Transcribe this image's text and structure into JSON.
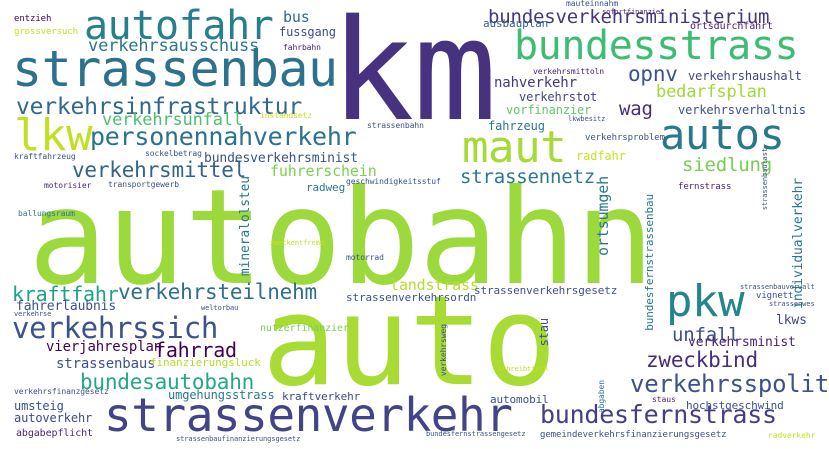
{
  "words": {
    "autobahn": {
      "text": "autobahn",
      "color": "#9bd93c"
    },
    "auto": {
      "text": "auto",
      "color": "#a8db34"
    },
    "km": {
      "text": "km",
      "color": "#46327e"
    },
    "strassenbau": {
      "text": "strassenbau",
      "color": "#2c728e"
    },
    "autofahr": {
      "text": "autofahr",
      "color": "#277f8e"
    },
    "bundesstrass": {
      "text": "bundesstrass",
      "color": "#3fbc73"
    },
    "autos": {
      "text": "autos",
      "color": "#2a788e"
    },
    "maut": {
      "text": "maut",
      "color": "#a5db36"
    },
    "lkw": {
      "text": "lkw",
      "color": "#c2df23"
    },
    "verkehrsinfrastruktur": {
      "text": "verkehrsinfrastruktur",
      "color": "#31688e"
    },
    "personennahverkehr": {
      "text": "personennahverkehr",
      "color": "#2c728e"
    },
    "strassenverkehr": {
      "text": "strassenverkehr",
      "color": "#414487"
    },
    "pkw": {
      "text": "pkw",
      "color": "#25858e"
    },
    "verkehrssich": {
      "text": "verkehrssich",
      "color": "#3b528b"
    },
    "bundesfernstrass": {
      "text": "bundesfernstrass",
      "color": "#433e85"
    },
    "verkehrsspolit": {
      "text": "verkehrsspolit",
      "color": "#3b528b"
    },
    "bundesautobahn": {
      "text": "bundesautobahn",
      "color": "#22a884"
    },
    "zweckbind": {
      "text": "zweckbind",
      "color": "#472d7b"
    },
    "verkehrsteilnehm": {
      "text": "verkehrsteilnehm",
      "color": "#2d708e"
    },
    "kraftfahr": {
      "text": "kraftfahr",
      "color": "#1fa187"
    },
    "verkehrsmittel": {
      "text": "verkehrsmittel",
      "color": "#33638d"
    },
    "bundesverkehrsministerium": {
      "text": "bundesverkehrsministerium",
      "color": "#453882"
    },
    "verkehrsausschuss": {
      "text": "verkehrsausschuss",
      "color": "#2a788e"
    },
    "verkehrsunfall": {
      "text": "verkehrsunfall",
      "color": "#4ac16d"
    },
    "strassennetz": {
      "text": "strassennetz",
      "color": "#2a788e"
    },
    "siedlung": {
      "text": "siedlung",
      "color": "#75d054"
    },
    "opnv": {
      "text": "opnv",
      "color": "#3b528b"
    },
    "wag": {
      "text": "wag",
      "color": "#472d7b"
    },
    "bedarfsplan": {
      "text": "bedarfsplan",
      "color": "#9fda3a"
    },
    "fahrrad": {
      "text": "fahrrad",
      "color": "#440154"
    },
    "unfall": {
      "text": "unfall",
      "color": "#3b528b"
    },
    "bundesverkehrsminist": {
      "text": "bundesverkehrsminist",
      "color": "#3b528b"
    },
    "fuhrerschein": {
      "text": "fuhrerschein",
      "color": "#7ad151"
    },
    "bus": {
      "text": "bus",
      "color": "#31688e"
    },
    "fussgang": {
      "text": "fussgang",
      "color": "#3e4a89"
    },
    "ausbauplan": {
      "text": "ausbauplan",
      "color": "#33638d"
    },
    "nahverkehr": {
      "text": "nahverkehr",
      "color": "#453882"
    },
    "verkehrstot": {
      "text": "verkehrstot",
      "color": "#414487"
    },
    "vorfinanzier": {
      "text": "vorfinanzier",
      "color": "#5ec962"
    },
    "verkehrsverhaltnis": {
      "text": "verkehrsverhaltnis",
      "color": "#3b528b"
    },
    "verkehrshaushalt": {
      "text": "verkehrshaushalt",
      "color": "#414487"
    },
    "fahrzeug": {
      "text": "fahrzeug",
      "color": "#2a788e"
    },
    "radfahr": {
      "text": "radfahr",
      "color": "#c8e020"
    },
    "radweg": {
      "text": "radweg",
      "color": "#2a788e"
    },
    "landstrass": {
      "text": "landstrass",
      "color": "#b5de2b"
    },
    "stau": {
      "text": "stau",
      "color": "#3b528b"
    },
    "lkws": {
      "text": "lkws",
      "color": "#3e4a89"
    },
    "verkehrsminist": {
      "text": "verkehrsminist",
      "color": "#481f70"
    },
    "fahrerlaubnis": {
      "text": "fahrerlaubnis",
      "color": "#3b528b"
    },
    "vierjahresplan": {
      "text": "vierjahresplan",
      "color": "#440154"
    },
    "strassenbaus": {
      "text": "strassenbaus",
      "color": "#3b528b"
    },
    "umgehungsstrass": {
      "text": "umgehungsstrass",
      "color": "#2a788e"
    },
    "kraftverkehr": {
      "text": "kraftverkehr",
      "color": "#3e4a89"
    },
    "umsteig": {
      "text": "umsteig",
      "color": "#3b528b"
    },
    "autoverkehr": {
      "text": "autoverkehr",
      "color": "#3e4a89"
    },
    "abgabepflicht": {
      "text": "abgabepflicht",
      "color": "#482878"
    },
    "hochstgeschwind": {
      "text": "hochstgeschwind",
      "color": "#3b528b"
    },
    "ortsumgeh": {
      "text": "ortsumgeh",
      "color": "#2a788e"
    },
    "mineralolsteu": {
      "text": "mineralolsteu",
      "color": "#2a788e"
    },
    "individualverkehr": {
      "text": "individualverkehr",
      "color": "#2a788e"
    },
    "bundesfernstrassenbau": {
      "text": "bundesfernstrassenbau",
      "color": "#2a788e"
    },
    "strassenverkehrsordn": {
      "text": "strassenverkehrsordn",
      "color": "#3b528b"
    },
    "strassenverkehrsgesetz": {
      "text": "strassenverkehrsgesetz",
      "color": "#3b528b"
    },
    "finanzierungsluck": {
      "text": "finanzierungsluck",
      "color": "#b5de2b"
    },
    "nutzerfinanzier": {
      "text": "nutzerfinanzier",
      "color": "#7ad151"
    },
    "automobil": {
      "text": "automobil",
      "color": "#3b528b"
    },
    "verkehrsweg": {
      "text": "verkehrsweg",
      "color": "#3b528b"
    },
    "fernstrass": {
      "text": "fernstrass",
      "color": "#481f70"
    },
    "vignett": {
      "text": "vignett",
      "color": "#3b528b"
    },
    "strassenbauverwalt": {
      "text": "strassenbauverwalt",
      "color": "#3b528b"
    },
    "strassenwes": {
      "text": "strassenwes",
      "color": "#3b528b"
    },
    "motorrad": {
      "text": "motorrad",
      "color": "#3b528b"
    },
    "zweckentfremd": {
      "text": "zweckentfremd",
      "color": "#c8e020"
    },
    "ballungsraum": {
      "text": "ballungsraum",
      "color": "#2a788e"
    },
    "motorisier": {
      "text": "motorisier",
      "color": "#482878"
    },
    "transportgewerb": {
      "text": "transportgewerb",
      "color": "#3b528b"
    },
    "kraftfahrzeug": {
      "text": "kraftfahrzeug",
      "color": "#3b528b"
    },
    "sockelbetrag": {
      "text": "sockelbetrag",
      "color": "#3b528b"
    },
    "geschwindigkeitsstuf": {
      "text": "geschwindigkeitsstuf",
      "color": "#3b528b"
    },
    "verkehrsproblem": {
      "text": "verkehrsproblem",
      "color": "#3b528b"
    },
    "verkehrsmittoln": {
      "text": "verkehrsmittoln",
      "color": "#481f70"
    },
    "strassenbahn": {
      "text": "strassenbahn",
      "color": "#3b528b"
    },
    "lkwbesitz": {
      "text": "lkwbesitz",
      "color": "#3b528b"
    },
    "instandsetz": {
      "text": "instandsetz",
      "color": "#c8e020"
    },
    "fahrbahn": {
      "text": "fahrbahn",
      "color": "#481f70"
    },
    "mauteinnahm": {
      "text": "mauteinnahm",
      "color": "#3b528b"
    },
    "sofortfinanzier": {
      "text": "sofortfinanzier",
      "color": "#481f70"
    },
    "ortsdurchfahrt": {
      "text": "ortsdurchfahrt",
      "color": "#481f70"
    },
    "strassenbaulast": {
      "text": "strassenbaulast",
      "color": "#3b528b"
    },
    "weltorbau": {
      "text": "weltorbau",
      "color": "#3b528b"
    },
    "verkehrse": {
      "text": "verkehrse",
      "color": "#3b528b"
    },
    "verkehrsfinanzgesetz": {
      "text": "verkehrsfinanzgesetz",
      "color": "#3b528b"
    },
    "entzieh": {
      "text": "entzieh",
      "color": "#440154"
    },
    "grossversuch": {
      "text": "grossversuch",
      "color": "#c8e020"
    },
    "strassenbaufinanzierungsgesetz": {
      "text": "strassenbaufinanzierungsgesetz",
      "color": "#3b528b"
    },
    "bundesfernstrassengesetz": {
      "text": "bundesfernstrassengesetz",
      "color": "#3b528b"
    },
    "gemeindeverkehrsfinanzierungsgesetz": {
      "text": "gemeindeverkehrsfinanzierungsgesetz",
      "color": "#3b528b"
    },
    "radverkehr": {
      "text": "radverkehr",
      "color": "#c8e020"
    },
    "staus": {
      "text": "staus",
      "color": "#481f70"
    },
    "schreibtisch": {
      "text": "schreibtisch",
      "color": "#c8e020"
    },
    "abgaben": {
      "text": "abgaben",
      "color": "#2a788e"
    }
  }
}
